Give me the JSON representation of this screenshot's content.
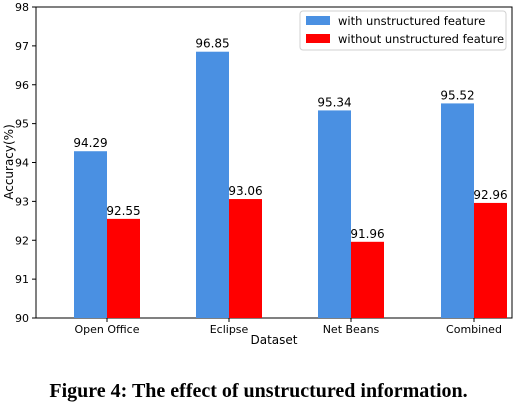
{
  "chart_data": {
    "type": "bar",
    "categories": [
      "Open Office",
      "Eclipse",
      "Net Beans",
      "Combined"
    ],
    "series": [
      {
        "name": "with unstructured feature",
        "values": [
          94.29,
          96.85,
          95.34,
          95.52
        ],
        "color": "#4a90e2"
      },
      {
        "name": "without unstructured feature",
        "values": [
          92.55,
          93.06,
          91.96,
          92.96
        ],
        "color": "#ff0000"
      }
    ],
    "data_labels": [
      [
        "94.29",
        "96.85",
        "95.34",
        "95.52"
      ],
      [
        "92.55",
        "93.06",
        "91.96",
        "92.96"
      ]
    ],
    "yticks": [
      "90",
      "91",
      "92",
      "93",
      "94",
      "95",
      "96",
      "97",
      "98"
    ],
    "ylim": [
      90,
      98
    ],
    "xlabel": "Dataset",
    "ylabel": "Accuracy(%)",
    "legend_position": "top-right",
    "grid": false
  },
  "caption": "Figure 4: The effect of unstructured information."
}
